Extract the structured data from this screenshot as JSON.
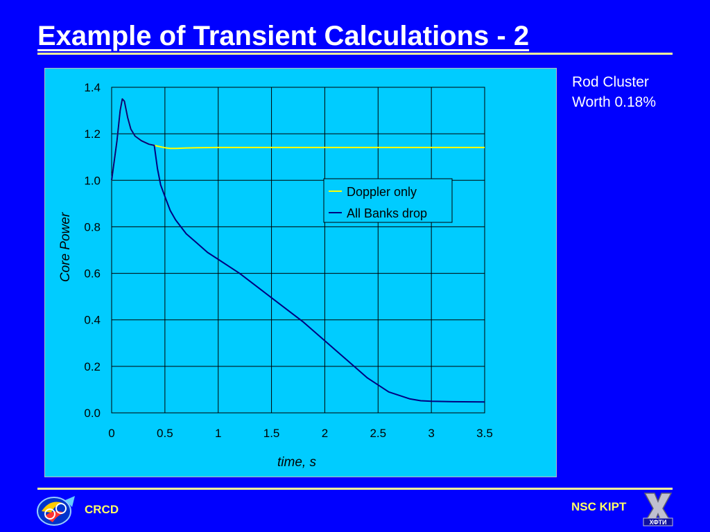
{
  "slide": {
    "title": "Example of Transient Calculations - 2",
    "annotation_line1": "Rod Cluster",
    "annotation_line2": "Worth 0.18%",
    "footer_left": "CRCD",
    "footer_right": "NSC KIPT",
    "logo_right_text": "ХФТИ"
  },
  "colors": {
    "background": "#0000ff",
    "plot_area": "#00ccff",
    "doppler_series": "#ffff00",
    "banks_series": "#000080",
    "footer_text": "#ffff66"
  },
  "chart_data": {
    "type": "line",
    "title": "",
    "xlabel": "time, s",
    "ylabel": "Core Power",
    "xlim": [
      0,
      3.5
    ],
    "ylim": [
      0,
      1.4
    ],
    "xticks": [
      0,
      0.5,
      1,
      1.5,
      2,
      2.5,
      3,
      3.5
    ],
    "xtick_labels": [
      "0",
      "0.5",
      "1",
      "1.5",
      "2",
      "2.5",
      "3",
      "3.5"
    ],
    "yticks": [
      0,
      0.2,
      0.4,
      0.6,
      0.8,
      1.0,
      1.2,
      1.4
    ],
    "ytick_labels": [
      "0.0",
      "0.2",
      "0.4",
      "0.6",
      "0.8",
      "1.0",
      "1.2",
      "1.4"
    ],
    "grid": true,
    "legend_position": "center-right",
    "series": [
      {
        "name": "Doppler only",
        "color": "#ffff00",
        "x": [
          0,
          0.05,
          0.08,
          0.1,
          0.12,
          0.15,
          0.18,
          0.22,
          0.28,
          0.35,
          0.4,
          0.45,
          0.5,
          0.55,
          0.6,
          0.7,
          0.8,
          1.0,
          1.5,
          2.0,
          2.5,
          3.0,
          3.5
        ],
        "y": [
          1.0,
          1.17,
          1.3,
          1.35,
          1.34,
          1.27,
          1.22,
          1.19,
          1.17,
          1.155,
          1.15,
          1.145,
          1.14,
          1.137,
          1.137,
          1.139,
          1.14,
          1.141,
          1.141,
          1.141,
          1.141,
          1.141,
          1.141
        ]
      },
      {
        "name": "All Banks drop",
        "color": "#000080",
        "x": [
          0,
          0.05,
          0.08,
          0.1,
          0.12,
          0.15,
          0.18,
          0.22,
          0.28,
          0.35,
          0.4,
          0.43,
          0.46,
          0.5,
          0.55,
          0.6,
          0.7,
          0.8,
          0.9,
          1.0,
          1.2,
          1.4,
          1.6,
          1.8,
          2.0,
          2.2,
          2.4,
          2.5,
          2.6,
          2.8,
          2.9,
          3.0,
          3.2,
          3.5
        ],
        "y": [
          1.0,
          1.17,
          1.3,
          1.35,
          1.34,
          1.27,
          1.22,
          1.19,
          1.17,
          1.155,
          1.15,
          1.05,
          0.98,
          0.93,
          0.87,
          0.83,
          0.77,
          0.73,
          0.69,
          0.66,
          0.6,
          0.53,
          0.46,
          0.39,
          0.31,
          0.23,
          0.15,
          0.12,
          0.09,
          0.06,
          0.052,
          0.05,
          0.048,
          0.047
        ]
      }
    ]
  }
}
